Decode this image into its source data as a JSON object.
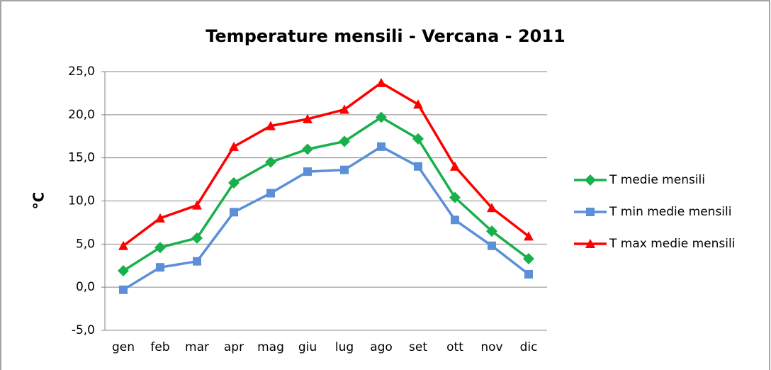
{
  "chart_data": {
    "type": "line",
    "title": "Temperature mensili - Vercana - 2011",
    "y_label": "°C",
    "categories": [
      "gen",
      "feb",
      "mar",
      "apr",
      "mag",
      "giu",
      "lug",
      "ago",
      "set",
      "ott",
      "nov",
      "dic"
    ],
    "series": [
      {
        "name": "T medie mensili",
        "color": "#18b04a",
        "marker": "diamond",
        "values": [
          1.9,
          4.6,
          5.7,
          12.1,
          14.5,
          16.0,
          16.9,
          19.7,
          17.2,
          10.4,
          6.5,
          3.3
        ]
      },
      {
        "name": "T min medie mensili",
        "color": "#5b8fd8",
        "marker": "square",
        "values": [
          -0.3,
          2.3,
          3.0,
          8.7,
          10.9,
          13.4,
          13.6,
          16.3,
          14.0,
          7.8,
          4.8,
          1.5
        ]
      },
      {
        "name": "T max medie mensili",
        "color": "#ff0000",
        "marker": "triangle",
        "values": [
          4.8,
          8.0,
          9.5,
          16.3,
          18.7,
          19.5,
          20.6,
          23.7,
          21.2,
          14.0,
          9.2,
          5.9
        ]
      }
    ],
    "ylim": [
      -5,
      25
    ],
    "yticks": [
      {
        "value": -5,
        "label": "-5,0"
      },
      {
        "value": 0,
        "label": "0,0"
      },
      {
        "value": 5,
        "label": "5,0"
      },
      {
        "value": 10,
        "label": "10,0"
      },
      {
        "value": 15,
        "label": "15,0"
      },
      {
        "value": 20,
        "label": "20,0"
      },
      {
        "value": 25,
        "label": "25,0"
      }
    ],
    "grid": true,
    "legend": "right"
  }
}
